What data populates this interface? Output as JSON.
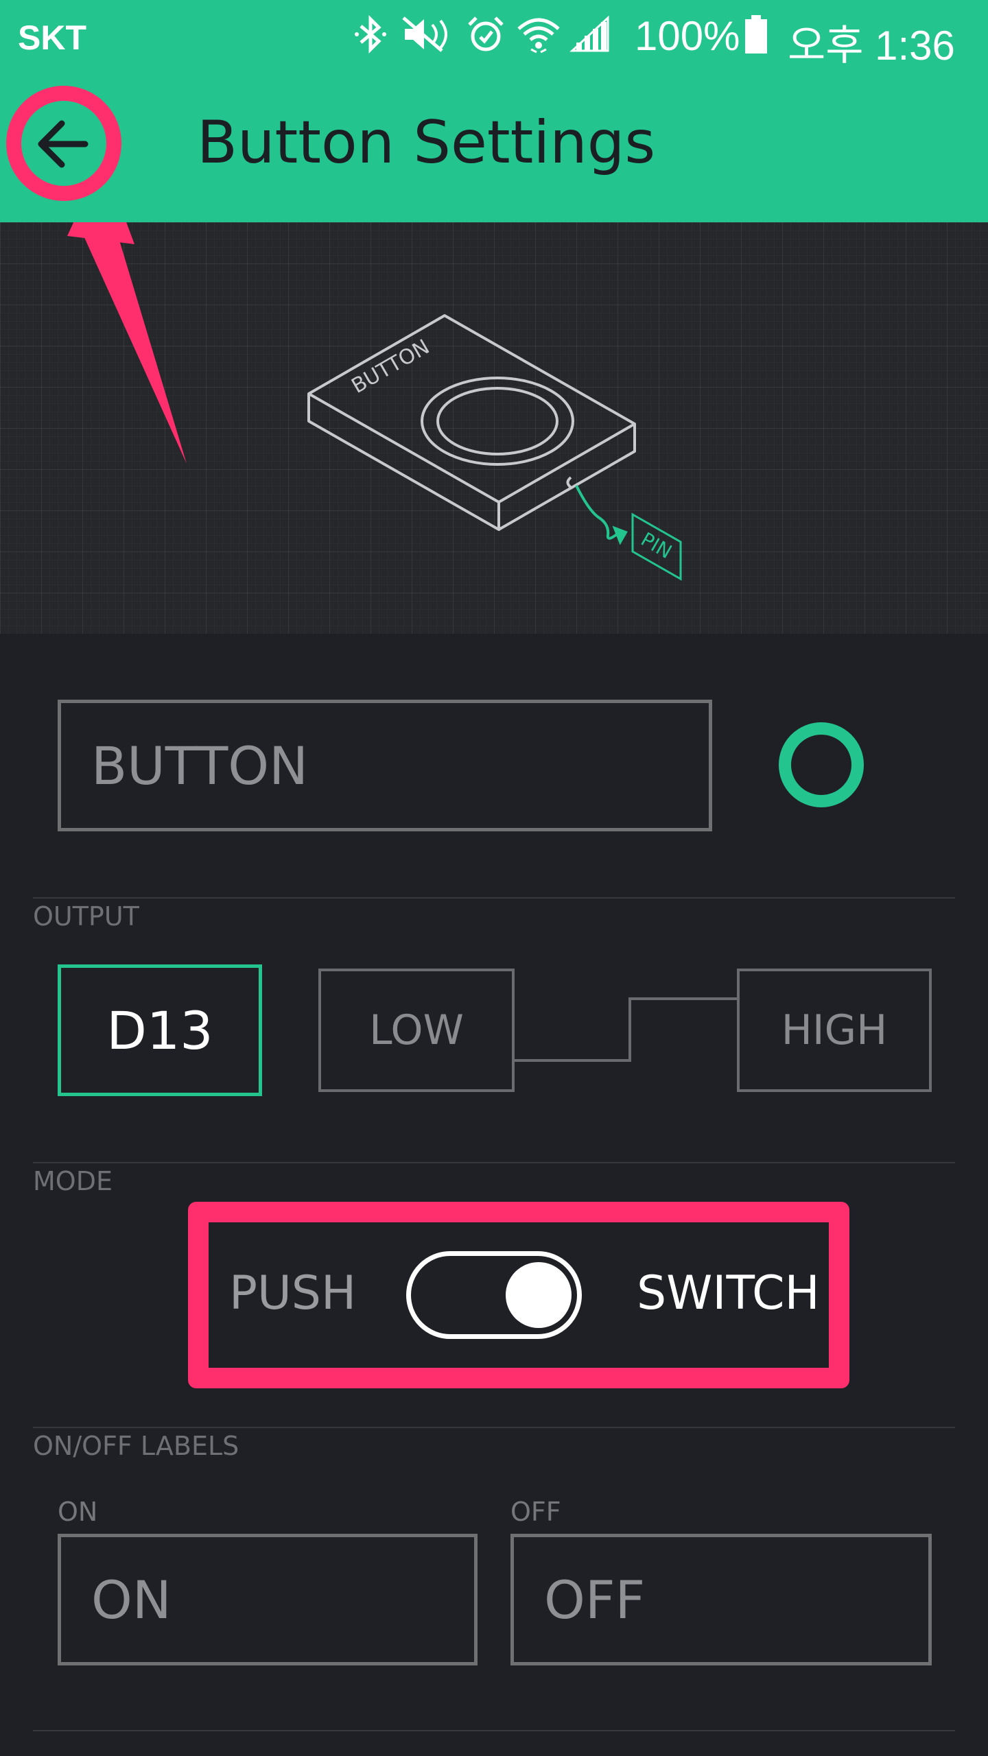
{
  "status_bar": {
    "carrier": "SKT",
    "battery": "100%",
    "time": "오후 1:36",
    "icons": [
      "bluetooth-icon",
      "mute-icon",
      "alarm-icon",
      "wifi-icon",
      "signal-icon",
      "battery-icon"
    ]
  },
  "header": {
    "title": "Button Settings",
    "back_icon": "arrow-left-icon"
  },
  "illustration": {
    "device_label": "BUTTON",
    "pin_label": "PIN"
  },
  "name_field": {
    "value": "BUTTON"
  },
  "output": {
    "section_label": "OUTPUT",
    "pin": "D13",
    "low_label": "LOW",
    "high_label": "HIGH"
  },
  "mode": {
    "section_label": "MODE",
    "push_label": "PUSH",
    "switch_label": "SWITCH",
    "selected": "SWITCH"
  },
  "labels": {
    "section_label": "ON/OFF LABELS",
    "on_caption": "ON",
    "off_caption": "OFF",
    "on_value": "ON",
    "off_value": "OFF"
  },
  "colors": {
    "accent": "#23c48e",
    "annotation": "#ff2e6c",
    "background": "#1f2025"
  }
}
